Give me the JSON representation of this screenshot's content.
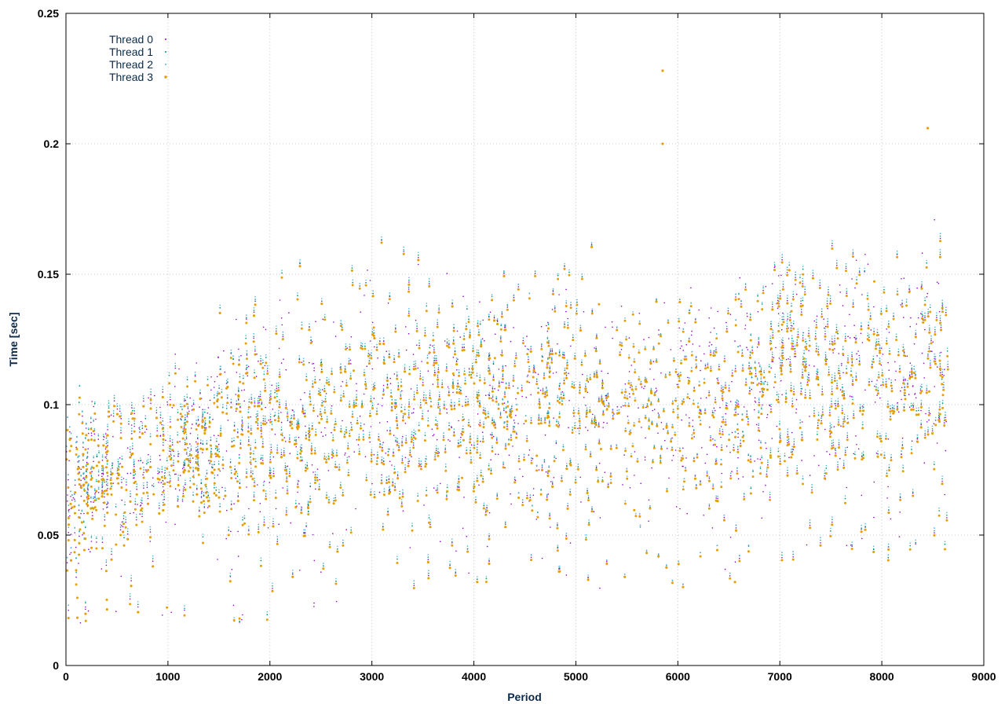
{
  "chart_data": {
    "type": "scatter",
    "title": "",
    "xlabel": "Period",
    "ylabel": "Time [sec]",
    "xlim": [
      0,
      9000
    ],
    "ylim": [
      0,
      0.25
    ],
    "xticks": [
      0,
      1000,
      2000,
      3000,
      4000,
      5000,
      6000,
      7000,
      8000,
      9000
    ],
    "yticks": [
      0,
      0.05,
      0.1,
      0.15,
      0.2,
      0.25
    ],
    "xtick_labels": [
      "0",
      "1000",
      "2000",
      "3000",
      "4000",
      "5000",
      "6000",
      "7000",
      "8000",
      "9000"
    ],
    "ytick_labels": [
      "0",
      "0.05",
      "0.1",
      "0.15",
      "0.2",
      "0.25"
    ],
    "grid": true,
    "legend_position": "top-left",
    "x_range_of_data": [
      0,
      8650
    ],
    "series": [
      {
        "name": "Thread 0",
        "color": "#9400d3",
        "marker": "dot",
        "trend": [
          [
            0,
            0.068
          ],
          [
            500,
            0.075
          ],
          [
            1000,
            0.082
          ],
          [
            1500,
            0.09
          ],
          [
            2000,
            0.093
          ],
          [
            2500,
            0.095
          ],
          [
            3000,
            0.1
          ],
          [
            3500,
            0.101
          ],
          [
            4000,
            0.103
          ],
          [
            4500,
            0.103
          ],
          [
            5000,
            0.104
          ],
          [
            5500,
            0.104
          ],
          [
            6000,
            0.1
          ],
          [
            6500,
            0.103
          ],
          [
            7000,
            0.115
          ],
          [
            7500,
            0.116
          ],
          [
            8000,
            0.112
          ],
          [
            8650,
            0.116
          ]
        ]
      },
      {
        "name": "Thread 1",
        "color": "#009e73",
        "marker": "dot",
        "trend": [
          [
            0,
            0.07
          ],
          [
            500,
            0.076
          ],
          [
            1000,
            0.083
          ],
          [
            1500,
            0.09
          ],
          [
            2000,
            0.094
          ],
          [
            2500,
            0.095
          ],
          [
            3000,
            0.1
          ],
          [
            3500,
            0.102
          ],
          [
            4000,
            0.103
          ],
          [
            4500,
            0.104
          ],
          [
            5000,
            0.104
          ],
          [
            5500,
            0.103
          ],
          [
            6000,
            0.1
          ],
          [
            6500,
            0.104
          ],
          [
            7000,
            0.116
          ],
          [
            7500,
            0.117
          ],
          [
            8000,
            0.112
          ],
          [
            8650,
            0.117
          ]
        ]
      },
      {
        "name": "Thread 2",
        "color": "#56b4e9",
        "marker": "dot",
        "trend": [
          [
            0,
            0.07
          ],
          [
            500,
            0.077
          ],
          [
            1000,
            0.084
          ],
          [
            1500,
            0.091
          ],
          [
            2000,
            0.095
          ],
          [
            2500,
            0.096
          ],
          [
            3000,
            0.101
          ],
          [
            3500,
            0.103
          ],
          [
            4000,
            0.104
          ],
          [
            4500,
            0.104
          ],
          [
            5000,
            0.105
          ],
          [
            5500,
            0.104
          ],
          [
            6000,
            0.1
          ],
          [
            6500,
            0.104
          ],
          [
            7000,
            0.117
          ],
          [
            7500,
            0.118
          ],
          [
            8000,
            0.113
          ],
          [
            8650,
            0.118
          ]
        ]
      },
      {
        "name": "Thread 3",
        "color": "#e69f00",
        "marker": "point",
        "trend": [
          [
            0,
            0.065
          ],
          [
            500,
            0.073
          ],
          [
            1000,
            0.08
          ],
          [
            1500,
            0.088
          ],
          [
            2000,
            0.092
          ],
          [
            2500,
            0.094
          ],
          [
            3000,
            0.099
          ],
          [
            3500,
            0.1
          ],
          [
            4000,
            0.102
          ],
          [
            4500,
            0.102
          ],
          [
            5000,
            0.103
          ],
          [
            5500,
            0.103
          ],
          [
            6000,
            0.099
          ],
          [
            6500,
            0.102
          ],
          [
            7000,
            0.114
          ],
          [
            7500,
            0.115
          ],
          [
            8000,
            0.111
          ],
          [
            8650,
            0.115
          ]
        ]
      }
    ],
    "annotations": [
      {
        "series": "Thread 3",
        "x": 5850,
        "y": 0.228
      },
      {
        "series": "Thread 3",
        "x": 5850,
        "y": 0.2
      },
      {
        "series": "Thread 3",
        "x": 8450,
        "y": 0.206
      },
      {
        "series": "Thread 3",
        "x": 6560,
        "y": 0.032
      }
    ]
  }
}
